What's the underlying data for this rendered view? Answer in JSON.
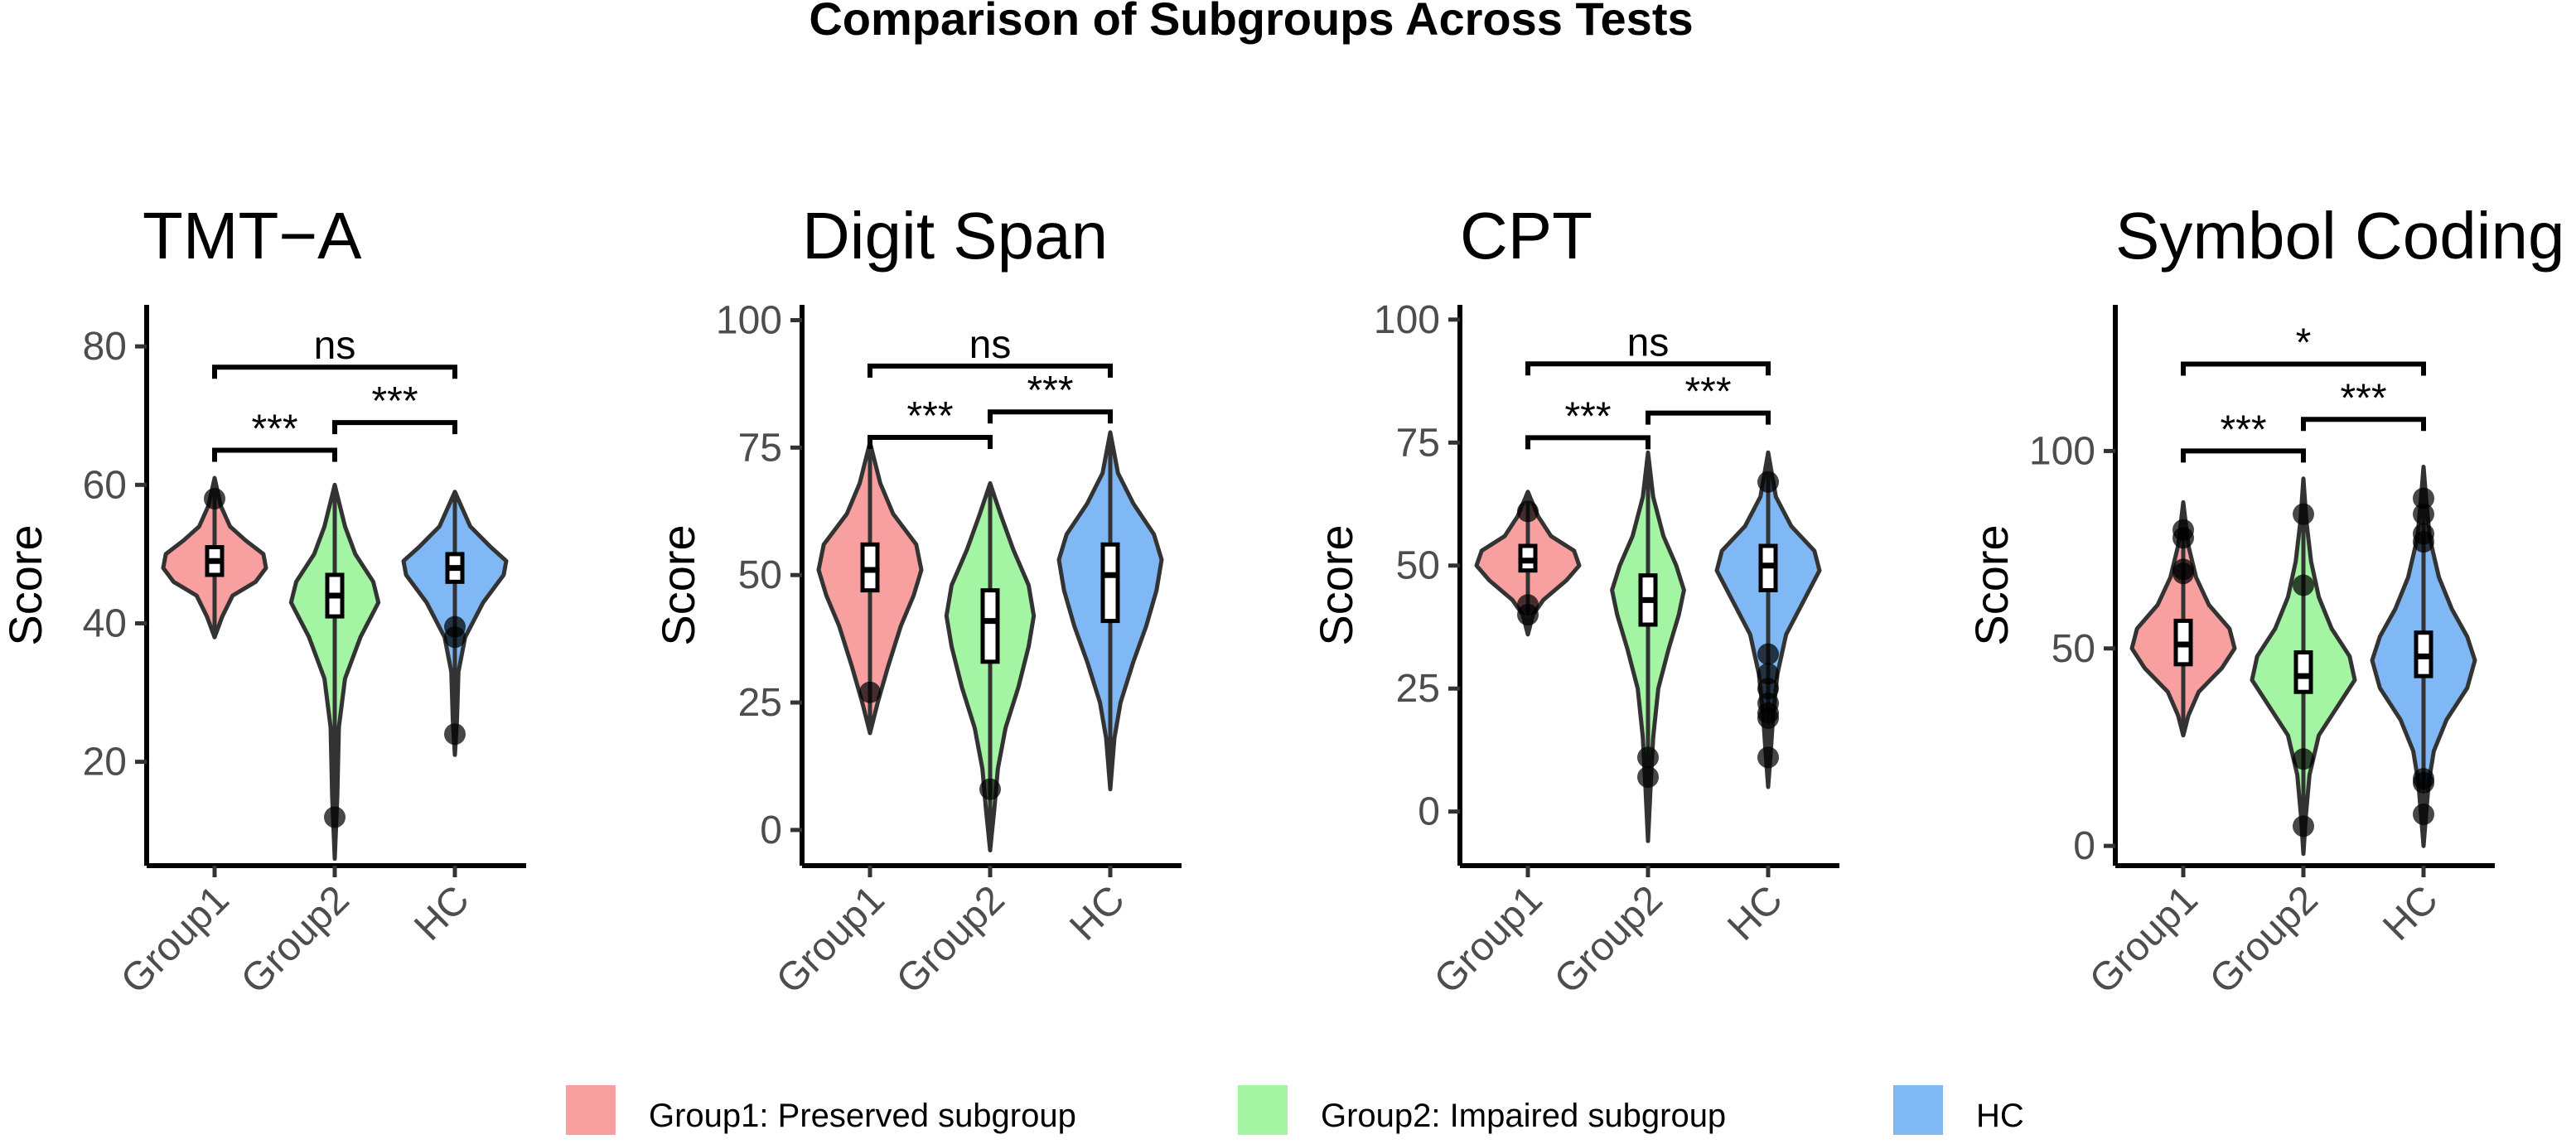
{
  "title": "Comparison of Subgroups Across Tests",
  "colors": {
    "Group1": "#F8A0A0",
    "Group2": "#A3F5A3",
    "HC": "#7FB8F5"
  },
  "legend": [
    {
      "group": "Group1",
      "label": "Group1:   Preserved subgroup"
    },
    {
      "group": "Group2",
      "label": "Group2:   Impaired subgroup"
    },
    {
      "group": "HC",
      "label": "HC"
    }
  ],
  "chart_data": [
    {
      "type": "violin",
      "title": "TMT−A",
      "ylabel": "Score",
      "xlabel": "",
      "categories": [
        "Group1",
        "Group2",
        "HC"
      ],
      "ylim": [
        5,
        86
      ],
      "yticks": [
        20,
        40,
        60,
        80
      ],
      "groups": [
        {
          "name": "Group1",
          "min": 38,
          "max": 61,
          "q1": 47,
          "median": 49,
          "q3": 51,
          "whisker_low": 41,
          "whisker_high": 56,
          "density": [
            [
              38,
              0
            ],
            [
              41,
              0.15
            ],
            [
              44,
              0.35
            ],
            [
              46,
              0.8
            ],
            [
              48,
              1.0
            ],
            [
              50,
              0.95
            ],
            [
              52,
              0.6
            ],
            [
              54,
              0.3
            ],
            [
              57,
              0.12
            ],
            [
              61,
              0
            ]
          ],
          "outliers": [
            58
          ]
        },
        {
          "name": "Group2",
          "min": 6,
          "max": 60,
          "q1": 41,
          "median": 44,
          "q3": 47,
          "whisker_low": 31,
          "whisker_high": 54,
          "density": [
            [
              6,
              0
            ],
            [
              15,
              0.05
            ],
            [
              25,
              0.08
            ],
            [
              32,
              0.2
            ],
            [
              38,
              0.5
            ],
            [
              43,
              0.85
            ],
            [
              46,
              0.75
            ],
            [
              50,
              0.4
            ],
            [
              54,
              0.2
            ],
            [
              60,
              0
            ]
          ],
          "outliers": [
            12
          ]
        },
        {
          "name": "HC",
          "min": 21,
          "max": 59,
          "q1": 46,
          "median": 48,
          "q3": 50,
          "whisker_low": 40,
          "whisker_high": 55,
          "density": [
            [
              21,
              0
            ],
            [
              26,
              0.04
            ],
            [
              33,
              0.07
            ],
            [
              38,
              0.2
            ],
            [
              43,
              0.55
            ],
            [
              47,
              0.95
            ],
            [
              49,
              1.0
            ],
            [
              51,
              0.7
            ],
            [
              54,
              0.3
            ],
            [
              59,
              0
            ]
          ],
          "outliers": [
            24,
            38,
            39.5
          ]
        }
      ],
      "comparisons": [
        {
          "from": "Group1",
          "to": "Group2",
          "label": "***",
          "y": 65
        },
        {
          "from": "Group2",
          "to": "HC",
          "label": "***",
          "y": 69
        },
        {
          "from": "Group1",
          "to": "HC",
          "label": "ns",
          "y": 77
        }
      ]
    },
    {
      "type": "violin",
      "title": "Digit Span",
      "ylabel": "Score",
      "xlabel": "",
      "categories": [
        "Group1",
        "Group2",
        "HC"
      ],
      "ylim": [
        -7,
        103
      ],
      "yticks": [
        0,
        25,
        50,
        75,
        100
      ],
      "groups": [
        {
          "name": "Group1",
          "min": 19,
          "max": 76,
          "q1": 47,
          "median": 51,
          "q3": 56,
          "whisker_low": 30,
          "whisker_high": 68,
          "density": [
            [
              19,
              0
            ],
            [
              25,
              0.15
            ],
            [
              32,
              0.35
            ],
            [
              40,
              0.6
            ],
            [
              46,
              0.85
            ],
            [
              51,
              1.0
            ],
            [
              56,
              0.9
            ],
            [
              62,
              0.45
            ],
            [
              68,
              0.2
            ],
            [
              76,
              0
            ]
          ],
          "outliers": [
            27
          ]
        },
        {
          "name": "Group2",
          "min": -4,
          "max": 68,
          "q1": 33,
          "median": 41,
          "q3": 47,
          "whisker_low": 18,
          "whisker_high": 56,
          "density": [
            [
              -4,
              0
            ],
            [
              4,
              0.08
            ],
            [
              12,
              0.15
            ],
            [
              20,
              0.3
            ],
            [
              28,
              0.55
            ],
            [
              36,
              0.75
            ],
            [
              42,
              0.85
            ],
            [
              48,
              0.75
            ],
            [
              55,
              0.45
            ],
            [
              62,
              0.2
            ],
            [
              68,
              0
            ]
          ],
          "outliers": [
            8
          ]
        },
        {
          "name": "HC",
          "min": 8,
          "max": 78,
          "q1": 41,
          "median": 50,
          "q3": 56,
          "whisker_low": 22,
          "whisker_high": 70,
          "density": [
            [
              8,
              0
            ],
            [
              18,
              0.08
            ],
            [
              25,
              0.2
            ],
            [
              33,
              0.45
            ],
            [
              40,
              0.7
            ],
            [
              47,
              0.9
            ],
            [
              53,
              1.0
            ],
            [
              58,
              0.85
            ],
            [
              64,
              0.45
            ],
            [
              70,
              0.15
            ],
            [
              78,
              0
            ]
          ],
          "outliers": []
        }
      ],
      "comparisons": [
        {
          "from": "Group1",
          "to": "Group2",
          "label": "***",
          "y": 77
        },
        {
          "from": "Group2",
          "to": "HC",
          "label": "***",
          "y": 82
        },
        {
          "from": "Group1",
          "to": "HC",
          "label": "ns",
          "y": 91
        }
      ]
    },
    {
      "type": "violin",
      "title": "CPT",
      "ylabel": "Score",
      "xlabel": "",
      "categories": [
        "Group1",
        "Group2",
        "HC"
      ],
      "ylim": [
        -11,
        103
      ],
      "yticks": [
        0,
        25,
        50,
        75,
        100
      ],
      "groups": [
        {
          "name": "Group1",
          "min": 36,
          "max": 65,
          "q1": 49,
          "median": 51,
          "q3": 54,
          "whisker_low": 42,
          "whisker_high": 60,
          "density": [
            [
              36,
              0
            ],
            [
              40,
              0.1
            ],
            [
              43,
              0.3
            ],
            [
              47,
              0.75
            ],
            [
              50,
              1.0
            ],
            [
              53,
              0.9
            ],
            [
              56,
              0.45
            ],
            [
              60,
              0.2
            ],
            [
              65,
              0
            ]
          ],
          "outliers": [
            40,
            42,
            61
          ]
        },
        {
          "name": "Group2",
          "min": -6,
          "max": 73,
          "q1": 38,
          "median": 43,
          "q3": 48,
          "whisker_low": 20,
          "whisker_high": 60,
          "density": [
            [
              -6,
              0
            ],
            [
              5,
              0.05
            ],
            [
              15,
              0.1
            ],
            [
              25,
              0.2
            ],
            [
              33,
              0.4
            ],
            [
              40,
              0.6
            ],
            [
              45,
              0.7
            ],
            [
              50,
              0.55
            ],
            [
              56,
              0.3
            ],
            [
              64,
              0.1
            ],
            [
              73,
              0
            ]
          ],
          "outliers": [
            7,
            11
          ]
        },
        {
          "name": "HC",
          "min": 5,
          "max": 73,
          "q1": 45,
          "median": 50,
          "q3": 54,
          "whisker_low": 32,
          "whisker_high": 64,
          "density": [
            [
              5,
              0
            ],
            [
              12,
              0.05
            ],
            [
              20,
              0.1
            ],
            [
              28,
              0.18
            ],
            [
              36,
              0.35
            ],
            [
              43,
              0.7
            ],
            [
              49,
              1.0
            ],
            [
              53,
              0.9
            ],
            [
              58,
              0.45
            ],
            [
              64,
              0.15
            ],
            [
              73,
              0
            ]
          ],
          "outliers": [
            11,
            19,
            20,
            22,
            25,
            28,
            32,
            67
          ]
        }
      ],
      "comparisons": [
        {
          "from": "Group1",
          "to": "Group2",
          "label": "***",
          "y": 76
        },
        {
          "from": "Group2",
          "to": "HC",
          "label": "***",
          "y": 81
        },
        {
          "from": "Group1",
          "to": "HC",
          "label": "ns",
          "y": 91
        }
      ]
    },
    {
      "type": "violin",
      "title": "Symbol Coding",
      "ylabel": "Score",
      "xlabel": "",
      "categories": [
        "Group1",
        "Group2",
        "HC"
      ],
      "ylim": [
        -5,
        137
      ],
      "yticks": [
        0,
        50,
        100
      ],
      "groups": [
        {
          "name": "Group1",
          "min": 28,
          "max": 87,
          "q1": 46,
          "median": 51,
          "q3": 57,
          "whisker_low": 36,
          "whisker_high": 68,
          "density": [
            [
              28,
              0
            ],
            [
              33,
              0.1
            ],
            [
              39,
              0.3
            ],
            [
              45,
              0.75
            ],
            [
              50,
              1.0
            ],
            [
              55,
              0.9
            ],
            [
              61,
              0.5
            ],
            [
              68,
              0.25
            ],
            [
              76,
              0.1
            ],
            [
              87,
              0
            ]
          ],
          "outliers": [
            69,
            70,
            78,
            80
          ]
        },
        {
          "name": "Group2",
          "min": -2,
          "max": 93,
          "q1": 39,
          "median": 43,
          "q3": 49,
          "whisker_low": 25,
          "whisker_high": 62,
          "density": [
            [
              -2,
              0
            ],
            [
              8,
              0.05
            ],
            [
              18,
              0.12
            ],
            [
              28,
              0.3
            ],
            [
              36,
              0.7
            ],
            [
              42,
              1.0
            ],
            [
              48,
              0.9
            ],
            [
              55,
              0.55
            ],
            [
              63,
              0.3
            ],
            [
              72,
              0.15
            ],
            [
              82,
              0.06
            ],
            [
              93,
              0
            ]
          ],
          "outliers": [
            5,
            22,
            66,
            84
          ]
        },
        {
          "name": "HC",
          "min": 0,
          "max": 96,
          "q1": 43,
          "median": 48,
          "q3": 54,
          "whisker_low": 28,
          "whisker_high": 70,
          "density": [
            [
              0,
              0
            ],
            [
              8,
              0.05
            ],
            [
              16,
              0.1
            ],
            [
              24,
              0.2
            ],
            [
              32,
              0.45
            ],
            [
              40,
              0.85
            ],
            [
              47,
              1.0
            ],
            [
              53,
              0.85
            ],
            [
              60,
              0.55
            ],
            [
              68,
              0.3
            ],
            [
              78,
              0.12
            ],
            [
              88,
              0.05
            ],
            [
              96,
              0
            ]
          ],
          "outliers": [
            8,
            16,
            17,
            77,
            79,
            84,
            88
          ]
        }
      ],
      "comparisons": [
        {
          "from": "Group1",
          "to": "Group2",
          "label": "***",
          "y": 100
        },
        {
          "from": "Group2",
          "to": "HC",
          "label": "***",
          "y": 108
        },
        {
          "from": "Group1",
          "to": "HC",
          "label": "*",
          "y": 122
        }
      ]
    }
  ]
}
